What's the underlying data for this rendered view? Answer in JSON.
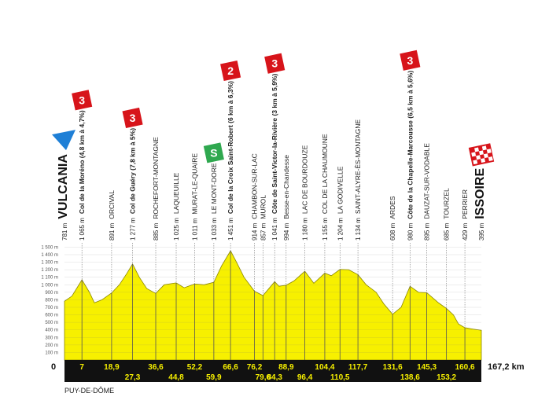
{
  "chart_data": {
    "type": "profile",
    "x": [
      0,
      3,
      7,
      10,
      12,
      15,
      18.9,
      22,
      25,
      27.3,
      30,
      33,
      36.6,
      40,
      44.8,
      48,
      52.2,
      56,
      59.9,
      63,
      66.6,
      69,
      72,
      76.2,
      79.6,
      82,
      84.3,
      86,
      88.9,
      92,
      96.4,
      100,
      104.4,
      107,
      110.5,
      114,
      117.7,
      121,
      125,
      128,
      131.6,
      135,
      138.6,
      142,
      145.3,
      150,
      153.2,
      156,
      158,
      160.6,
      164,
      167.2
    ],
    "values": [
      781,
      850,
      1065,
      900,
      760,
      800,
      891,
      1000,
      1150,
      1277,
      1100,
      950,
      885,
      1000,
      1025,
      960,
      1011,
      1000,
      1033,
      1250,
      1451,
      1300,
      1100,
      914,
      857,
      950,
      1041,
      980,
      994,
      1050,
      1180,
      1020,
      1155,
      1120,
      1204,
      1200,
      1134,
      1000,
      900,
      750,
      608,
      700,
      980,
      900,
      895,
      760,
      685,
      600,
      480,
      429,
      410,
      395
    ],
    "xlim": [
      0,
      167.2
    ],
    "ylim": [
      0,
      1550
    ],
    "yticks": [
      {
        "value": 100,
        "label": "100 m"
      },
      {
        "value": 200,
        "label": "200 m"
      },
      {
        "value": 300,
        "label": "300 m"
      },
      {
        "value": 400,
        "label": "400 m"
      },
      {
        "value": 500,
        "label": "500 m"
      },
      {
        "value": 600,
        "label": "600 m"
      },
      {
        "value": 700,
        "label": "700 m"
      },
      {
        "value": 800,
        "label": "800 m"
      },
      {
        "value": 900,
        "label": "900 m"
      },
      {
        "value": 1000,
        "label": "1 000 m"
      },
      {
        "value": 1100,
        "label": "1 100 m"
      },
      {
        "value": 1200,
        "label": "1 200 m"
      },
      {
        "value": 1300,
        "label": "1 300 m"
      },
      {
        "value": 1400,
        "label": "1 400 m"
      },
      {
        "value": 1500,
        "label": "1 500 m"
      }
    ],
    "color": "#f7f000",
    "grid": true,
    "waypoints": [
      {
        "km": 0,
        "km_label": "0",
        "altitude": 781,
        "altitude_label": "781 m",
        "name": "VULCANIA"
      },
      {
        "km": 7,
        "km_label": "7",
        "altitude": 1065,
        "altitude_label": "1 065 m",
        "name": "Col de la Moréno (4,8 km à 4,7%)",
        "category": "3"
      },
      {
        "km": 18.9,
        "km_label": "18,9",
        "altitude": 891,
        "altitude_label": "891 m",
        "name": "ORCIVAL"
      },
      {
        "km": 27.3,
        "km_label": "27,3",
        "altitude": 1277,
        "altitude_label": "1 277 m",
        "name": "Col de Guéry (7,8 km à 5%)",
        "category": "3"
      },
      {
        "km": 36.6,
        "km_label": "36,6",
        "altitude": 885,
        "altitude_label": "885 m",
        "name": "ROCHEFORT-MONTAGNE"
      },
      {
        "km": 44.8,
        "km_label": "44,8",
        "altitude": 1025,
        "altitude_label": "1 025 m",
        "name": "LAQUEUILLE"
      },
      {
        "km": 52.2,
        "km_label": "52,2",
        "altitude": 1011,
        "altitude_label": "1 011 m",
        "name": "MURAT-LE-QUAIRE"
      },
      {
        "km": 59.9,
        "km_label": "59,9",
        "altitude": 1033,
        "altitude_label": "1 033 m",
        "name": "LE MONT-DORE",
        "sprint": "S"
      },
      {
        "km": 66.6,
        "km_label": "66,6",
        "altitude": 1451,
        "altitude_label": "1 451 m",
        "name": "Col de la Croix Saint-Robert (6 km à 6,3%)",
        "category": "2"
      },
      {
        "km": 76.2,
        "km_label": "76,2",
        "altitude": 914,
        "altitude_label": "914 m",
        "name": "CHAMBON-SUR-LAC"
      },
      {
        "km": 79.6,
        "km_label": "79,6",
        "altitude": 857,
        "altitude_label": "857 m",
        "name": "MUROL"
      },
      {
        "km": 84.3,
        "km_label": "84,3",
        "altitude": 1041,
        "altitude_label": "1 041 m",
        "name": "Côte de Saint-Victor-la-Rivière (3 km à 5,9%)",
        "category": "3"
      },
      {
        "km": 88.9,
        "km_label": "88,9",
        "altitude": 994,
        "altitude_label": "994 m",
        "name": "Besse-en-Chandesse"
      },
      {
        "km": 96.4,
        "km_label": "96,4",
        "altitude": 1180,
        "altitude_label": "1 180 m",
        "name": "LAC DE BOURDOUZE"
      },
      {
        "km": 104.4,
        "km_label": "104,4",
        "altitude": 1155,
        "altitude_label": "1 155 m",
        "name": "COL DE LA CHAUMOUNE"
      },
      {
        "km": 110.5,
        "km_label": "110,5",
        "altitude": 1204,
        "altitude_label": "1 204 m",
        "name": "LA GODIVELLE"
      },
      {
        "km": 117.7,
        "km_label": "117,7",
        "altitude": 1134,
        "altitude_label": "1 134 m",
        "name": "SAINT-ALYRE-ÈS-MONTAGNE"
      },
      {
        "km": 131.6,
        "km_label": "131,6",
        "altitude": 608,
        "altitude_label": "608 m",
        "name": "ARDES"
      },
      {
        "km": 138.6,
        "km_label": "138,6",
        "altitude": 980,
        "altitude_label": "980 m",
        "name": "Côte de la Chapelle-Marcousse (6,5 km à 5,6%)",
        "category": "3"
      },
      {
        "km": 145.3,
        "km_label": "145,3",
        "altitude": 895,
        "altitude_label": "895 m",
        "name": "DAUZAT-SUR-VODABLE"
      },
      {
        "km": 153.2,
        "km_label": "153,2",
        "altitude": 685,
        "altitude_label": "685 m",
        "name": "TOURZEL"
      },
      {
        "km": 160.6,
        "km_label": "160,6",
        "altitude": 429,
        "altitude_label": "429 m",
        "name": "PERRIER"
      },
      {
        "km": 167.2,
        "km_label": "167,2 km",
        "altitude": 395,
        "altitude_label": "395 m",
        "name": "ISSOIRE"
      }
    ],
    "region": "PUY-DE-DÔME"
  }
}
